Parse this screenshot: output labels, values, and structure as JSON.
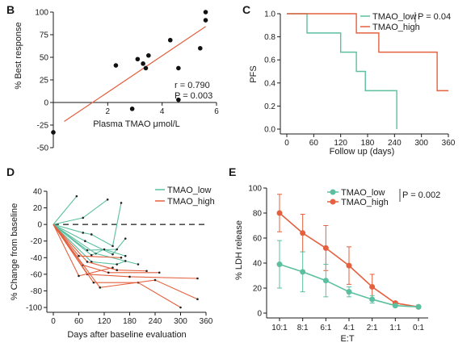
{
  "colors": {
    "low": "#5bbfa0",
    "high": "#e4603e",
    "axis": "#1a1a1a",
    "regression": "#e4603e",
    "dots": "#111111"
  },
  "chart_data": [
    {
      "panel": "B",
      "type": "scatter",
      "xlabel": "Plasma TMAO μmol/L",
      "ylabel": "% Best response",
      "xlim": [
        0,
        6
      ],
      "ylim": [
        -50,
        100
      ],
      "xticks": [
        2,
        4,
        6
      ],
      "yticks": [
        -50,
        -25,
        0,
        25,
        50,
        75,
        100
      ],
      "points": [
        {
          "x": 0.0,
          "y": -33
        },
        {
          "x": 2.3,
          "y": 41
        },
        {
          "x": 2.9,
          "y": -7
        },
        {
          "x": 3.1,
          "y": 48
        },
        {
          "x": 3.3,
          "y": 43
        },
        {
          "x": 3.4,
          "y": 38
        },
        {
          "x": 3.5,
          "y": 52
        },
        {
          "x": 4.3,
          "y": 69
        },
        {
          "x": 4.6,
          "y": 38
        },
        {
          "x": 5.4,
          "y": 60
        },
        {
          "x": 5.6,
          "y": 91
        },
        {
          "x": 5.6,
          "y": 100
        },
        {
          "x": 4.6,
          "y": 3
        }
      ],
      "regression": {
        "x": [
          0.4,
          5.6
        ],
        "y": [
          -21,
          84
        ]
      },
      "annotations": [
        "r = 0.790",
        "P = 0.003"
      ]
    },
    {
      "panel": "C",
      "type": "line",
      "step": true,
      "xlabel": "Follow up (days)",
      "ylabel": "PFS",
      "xlim": [
        0,
        360
      ],
      "ylim": [
        0,
        1
      ],
      "xticks": [
        0,
        60,
        120,
        180,
        240,
        300,
        360
      ],
      "yticks": [
        0.0,
        0.2,
        0.4,
        0.6,
        0.8,
        1.0
      ],
      "series": [
        {
          "name": "TMAO_low",
          "x": [
            0,
            45,
            120,
            155,
            175,
            245
          ],
          "y": [
            1.0,
            0.833,
            0.667,
            0.5,
            0.333,
            0.0
          ]
        },
        {
          "name": "TMAO_high",
          "x": [
            0,
            155,
            205,
            335,
            360
          ],
          "y": [
            1.0,
            0.833,
            0.667,
            0.333,
            0.333
          ]
        }
      ],
      "annotation": "P = 0.04",
      "legend": "top-right"
    },
    {
      "panel": "D",
      "type": "line",
      "xlabel": "Days after baseline evaluation",
      "ylabel": "% Change from baseline",
      "xlim": [
        0,
        360
      ],
      "ylim": [
        -100,
        40
      ],
      "xticks": [
        0,
        60,
        120,
        180,
        240,
        300,
        360
      ],
      "yticks": [
        -100,
        -80,
        -60,
        -40,
        -20,
        0,
        20,
        40
      ],
      "reference_line": 0,
      "series": [
        {
          "name": "TMAO_low",
          "lines": [
            [
              [
                0,
                0
              ],
              [
                55,
                34
              ]
            ],
            [
              [
                0,
                0
              ],
              [
                70,
                8
              ],
              [
                128,
                30
              ]
            ],
            [
              [
                0,
                0
              ],
              [
                70,
                -10
              ],
              [
                90,
                -12
              ],
              [
                140,
                -26
              ],
              [
                160,
                26
              ]
            ],
            [
              [
                0,
                0
              ],
              [
                75,
                -20
              ],
              [
                140,
                -36
              ],
              [
                170,
                -17
              ]
            ],
            [
              [
                0,
                0
              ],
              [
                80,
                -31
              ],
              [
                150,
                -30
              ]
            ],
            [
              [
                0,
                0
              ],
              [
                100,
                -35
              ],
              [
                200,
                -48
              ]
            ],
            [
              [
                0,
                0
              ],
              [
                90,
                -37
              ],
              [
                120,
                -30
              ],
              [
                170,
                -38
              ]
            ],
            [
              [
                0,
                0
              ],
              [
                90,
                -45
              ],
              [
                150,
                -48
              ],
              [
                170,
                -44
              ]
            ]
          ]
        },
        {
          "name": "TMAO_high",
          "lines": [
            [
              [
                0,
                0
              ],
              [
                60,
                -38
              ],
              [
                160,
                -40
              ]
            ],
            [
              [
                0,
                0
              ],
              [
                80,
                -45
              ],
              [
                150,
                -55
              ],
              [
                220,
                -56
              ]
            ],
            [
              [
                0,
                0
              ],
              [
                70,
                -49
              ],
              [
                130,
                -58
              ],
              [
                250,
                -58
              ]
            ],
            [
              [
                0,
                0
              ],
              [
                80,
                -60
              ],
              [
                180,
                -63
              ],
              [
                340,
                -65
              ]
            ],
            [
              [
                0,
                0
              ],
              [
                95,
                -70
              ],
              [
                200,
                -70
              ],
              [
                300,
                -100
              ]
            ],
            [
              [
                0,
                0
              ],
              [
                110,
                -76
              ],
              [
                240,
                -67
              ],
              [
                340,
                -90
              ]
            ],
            [
              [
                0,
                0
              ],
              [
                60,
                -62
              ],
              [
                140,
                -52
              ]
            ]
          ]
        }
      ],
      "legend": "top-right"
    },
    {
      "panel": "E",
      "type": "line",
      "xlabel": "E:T",
      "ylabel": "% LDH release",
      "categories": [
        "10:1",
        "8:1",
        "6:1",
        "4:1",
        "2:1",
        "1:1",
        "0:1"
      ],
      "ylim": [
        0,
        100
      ],
      "yticks": [
        0,
        20,
        40,
        60,
        80,
        100
      ],
      "series": [
        {
          "name": "TMAO_low",
          "values": [
            39,
            33,
            26,
            17,
            11,
            6,
            5
          ],
          "errors": [
            19,
            16,
            13,
            4,
            3,
            1,
            1
          ]
        },
        {
          "name": "TMAO_high",
          "values": [
            80,
            64,
            52,
            38,
            21,
            8,
            5
          ],
          "errors": [
            15,
            15,
            18,
            15,
            10,
            1,
            1
          ]
        }
      ],
      "annotation": "P = 0.002",
      "legend": "top-right"
    }
  ],
  "panels": {
    "b_label": "B",
    "c_label": "C",
    "d_label": "D",
    "e_label": "E"
  }
}
